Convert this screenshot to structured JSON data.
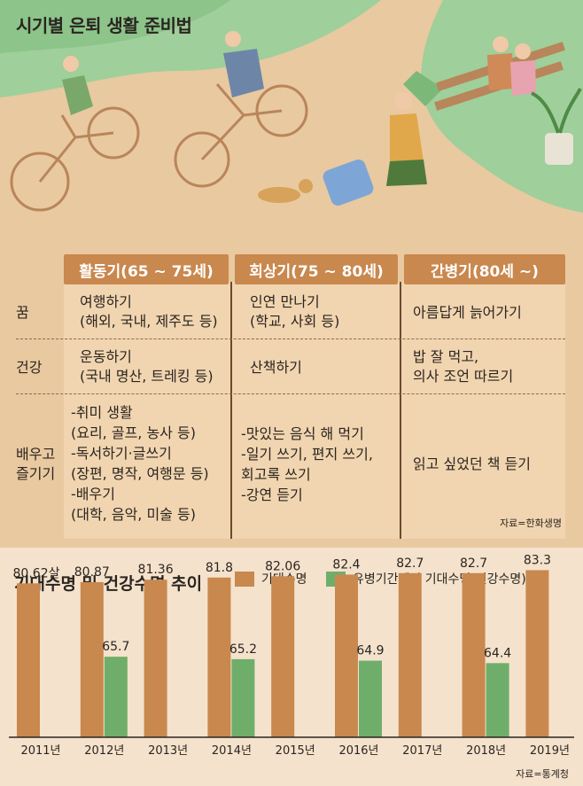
{
  "title": "시기별 은퇴 생활 준비법",
  "table": {
    "columns": [
      "활동기(65 ~ 75세)",
      "회상기(75 ~ 80세)",
      "간병기(80세 ~)"
    ],
    "rows": [
      {
        "label": "꿈",
        "cells": [
          "여행하기\n(해외, 국내, 제주도 등)",
          "인연 만나기\n(학교, 사회 등)",
          "아름답게 늙어가기"
        ]
      },
      {
        "label": "건강",
        "cells": [
          "운동하기\n(국내 명산, 트레킹 등)",
          "산책하기",
          "밥 잘 먹고,\n의사 조언 따르기"
        ]
      },
      {
        "label": "배우고\n즐기기",
        "cells": [
          "-취미 생활\n(요리, 골프, 농사 등)\n-독서하기·글쓰기\n(장편, 명작, 여행문 등)\n-배우기\n(대학, 음악, 미술 등)",
          "-맛있는 음식 해 먹기\n-일기 쓰기, 편지 쓰기,\n회고록 쓰기\n-강연 듣기",
          "읽고 싶었던 책 듣기"
        ]
      }
    ],
    "source": "자료=한화생명"
  },
  "chart_data": {
    "type": "bar",
    "title": "기대수명 및 건강수명 추이",
    "categories": [
      "2011년",
      "2012년",
      "2013년",
      "2014년",
      "2015년",
      "2016년",
      "2017년",
      "2018년",
      "2019년"
    ],
    "series": [
      {
        "name": "기대수명",
        "color": "#c9884e",
        "values": [
          80.62,
          80.87,
          81.36,
          81.8,
          82.06,
          82.4,
          82.7,
          82.7,
          83.3
        ],
        "labels": [
          "80.62살",
          "80.87",
          "81.36",
          "81.8",
          "82.06",
          "82.4",
          "82.7",
          "82.7",
          "83.3"
        ]
      },
      {
        "name": "유병기간제외 기대수명(건강수명)",
        "color": "#6fae6a",
        "values": [
          null,
          65.7,
          null,
          65.2,
          null,
          64.9,
          null,
          64.4,
          null
        ],
        "labels": [
          "",
          "65.7",
          "",
          "65.2",
          "",
          "64.9",
          "",
          "64.4",
          ""
        ]
      }
    ],
    "source": "자료=통계청"
  }
}
